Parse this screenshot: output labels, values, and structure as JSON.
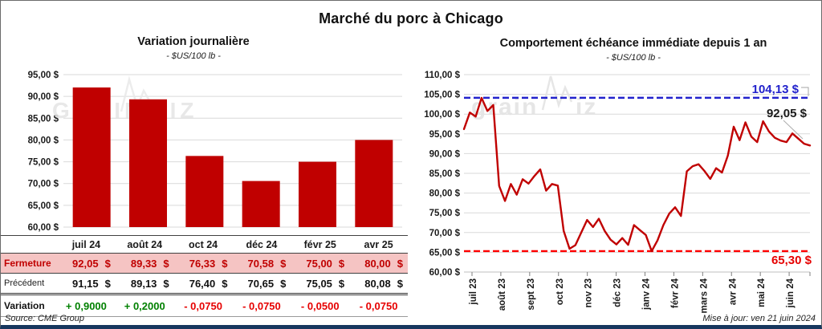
{
  "page": {
    "title_main": "Marché du porc à Chicago",
    "source": "Source: CME Group",
    "updated": "Mise à jour: ven 21 juin 2024",
    "watermark": "grainwiz"
  },
  "colors": {
    "bar_red": "#C00000",
    "line_red": "#C00000",
    "ref_blue": "#2222CC",
    "ref_red": "#FF0000",
    "pink_row": "#F5C4C3",
    "green": "#008000",
    "bright_red": "#E60000",
    "grid": "#D9D9D9",
    "frame_bottom": "#17375E"
  },
  "chart_data": [
    {
      "type": "bar",
      "title": "Variation journalière",
      "subtitle": "- $US/100 lb -",
      "categories": [
        "juil 24",
        "août 24",
        "oct 24",
        "déc 24",
        "févr 25",
        "avr 25"
      ],
      "values": [
        92.05,
        89.33,
        76.33,
        70.58,
        75.0,
        80.0
      ],
      "ylim": [
        60,
        95
      ],
      "ytick_step": 5,
      "ytick_labels": [
        "95,00 $",
        "90,00 $",
        "85,00 $",
        "80,00 $",
        "75,00 $",
        "70,00 $",
        "65,00 $",
        "60,00 $"
      ],
      "grid": true,
      "legend": "none",
      "bar_color": "#C00000"
    },
    {
      "type": "line",
      "title": "Comportement échéance immédiate depuis 1 an",
      "subtitle": "- $US/100 lb -",
      "x_labels": [
        "juil 23",
        "août 23",
        "sept 23",
        "oct 23",
        "nov 23",
        "déc 23",
        "janv 24",
        "févr 24",
        "mars 24",
        "avr 24",
        "mai 24",
        "juin 24"
      ],
      "values": [
        96.2,
        100.4,
        99.4,
        104.1,
        100.8,
        102.3,
        81.8,
        78.0,
        82.3,
        79.6,
        83.5,
        82.4,
        84.3,
        86.0,
        80.6,
        82.3,
        81.9,
        70.4,
        65.9,
        66.8,
        70.0,
        73.2,
        71.4,
        73.5,
        70.4,
        68.2,
        67.0,
        68.6,
        66.9,
        71.9,
        70.6,
        69.4,
        65.3,
        68.0,
        71.9,
        74.8,
        76.4,
        74.2,
        85.5,
        86.8,
        87.3,
        85.6,
        83.6,
        86.3,
        85.2,
        89.5,
        96.8,
        93.4,
        97.9,
        94.3,
        92.9,
        98.2,
        95.6,
        94.0,
        93.3,
        92.9,
        95.1,
        93.8,
        92.5,
        92.05
      ],
      "ylim": [
        60,
        110
      ],
      "ytick_step": 5,
      "ytick_labels": [
        "110,00 $",
        "105,00 $",
        "100,00 $",
        "95,00 $",
        "90,00 $",
        "85,00 $",
        "80,00 $",
        "75,00 $",
        "70,00 $",
        "65,00 $",
        "60,00 $"
      ],
      "grid": true,
      "legend": "none",
      "line_color": "#C00000",
      "annotations": {
        "max_line": {
          "value": 104.13,
          "label": "104,13 $",
          "color": "#2222CC",
          "style": "dashed"
        },
        "min_line": {
          "value": 65.3,
          "label": "65,30 $",
          "color": "#FF0000",
          "style": "dashed"
        },
        "last_point": {
          "value": 92.05,
          "label": "92,05 $",
          "color": "#1a1a1a"
        }
      }
    }
  ],
  "table": {
    "columns": [
      "juil 24",
      "août 24",
      "oct 24",
      "déc 24",
      "févr 25",
      "avr 25"
    ],
    "currency": "$",
    "rows": [
      {
        "label": "Fermeture",
        "style": "fermeture",
        "values": [
          "92,05",
          "89,33",
          "76,33",
          "70,58",
          "75,00",
          "80,00"
        ]
      },
      {
        "label": "Précédent",
        "style": "precedent",
        "values": [
          "91,15",
          "89,13",
          "76,40",
          "70,65",
          "75,05",
          "80,08"
        ]
      },
      {
        "label": "Variation",
        "style": "variation",
        "values": [
          "+ 0,9000",
          "+ 0,2000",
          "- 0,0750",
          "- 0,0750",
          "- 0,0500",
          "- 0,0750"
        ],
        "signs": [
          "pos",
          "pos",
          "neg",
          "neg",
          "neg",
          "neg"
        ]
      }
    ]
  }
}
